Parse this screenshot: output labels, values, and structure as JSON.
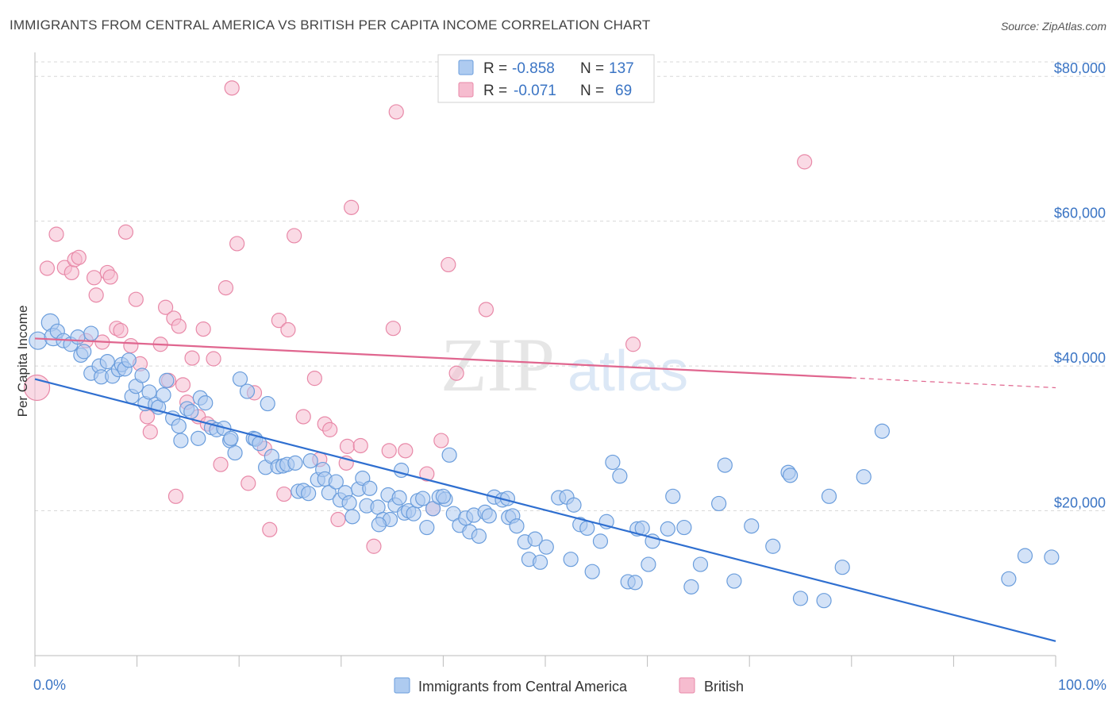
{
  "title": "IMMIGRANTS FROM CENTRAL AMERICA VS BRITISH PER CAPITA INCOME CORRELATION CHART",
  "source": "Source: ZipAtlas.com",
  "watermark": {
    "zip": "ZIP",
    "atlas": "atlas"
  },
  "colors": {
    "blue_fill": "#aecbf0",
    "blue_stroke": "#6a9ddc",
    "blue_line": "#2f6fd0",
    "pink_fill": "#f6bccf",
    "pink_stroke": "#e889a8",
    "pink_line": "#e0668f",
    "grid": "#d8d8d8",
    "label": "#3a74c4"
  },
  "legend": {
    "rows": [
      {
        "r_label": "R =",
        "r_value": "-0.858",
        "n_label": "N =",
        "n_value": "137",
        "series": "blue"
      },
      {
        "r_label": "R =",
        "r_value": "-0.071",
        "n_label": "N =",
        "n_value": "69",
        "series": "pink"
      }
    ]
  },
  "bottom_legend": [
    "Immigrants from Central America",
    "British"
  ],
  "chart_data": {
    "type": "scatter",
    "title": "IMMIGRANTS FROM CENTRAL AMERICA VS BRITISH PER CAPITA INCOME CORRELATION CHART",
    "ylabel": "Per Capita Income",
    "xlim": [
      0,
      100
    ],
    "ylim": [
      0,
      82000
    ],
    "x_tick_labels": [
      "0.0%",
      "100.0%"
    ],
    "y_ticks": [
      20000,
      40000,
      60000,
      80000
    ],
    "y_tick_labels": [
      "$20,000",
      "$40,000",
      "$60,000",
      "$80,000"
    ],
    "grid": true,
    "legend_position": "top-center",
    "series": [
      {
        "name": "Immigrants from Central America",
        "color": "blue",
        "trend": {
          "x": [
            0,
            100
          ],
          "y": [
            38200,
            2000
          ]
        },
        "points": [
          [
            0.3,
            43500
          ],
          [
            1.5,
            46000
          ],
          [
            1.8,
            44000
          ],
          [
            2.2,
            44800
          ],
          [
            2.8,
            43500
          ],
          [
            3.5,
            43000
          ],
          [
            4.2,
            44000
          ],
          [
            4.5,
            41500
          ],
          [
            4.8,
            42000
          ],
          [
            5.5,
            44500
          ],
          [
            5.5,
            39000
          ],
          [
            6.3,
            40000
          ],
          [
            6.5,
            38500
          ],
          [
            7.1,
            40600
          ],
          [
            7.6,
            38600
          ],
          [
            8.2,
            39500
          ],
          [
            8.5,
            40200
          ],
          [
            8.8,
            39600
          ],
          [
            9.2,
            40800
          ],
          [
            9.5,
            35800
          ],
          [
            9.9,
            37200
          ],
          [
            10.5,
            38700
          ],
          [
            10.8,
            34800
          ],
          [
            11.2,
            36400
          ],
          [
            11.8,
            34700
          ],
          [
            12.1,
            34300
          ],
          [
            12.6,
            36000
          ],
          [
            12.9,
            38000
          ],
          [
            13.5,
            32800
          ],
          [
            14.1,
            31700
          ],
          [
            14.3,
            29700
          ],
          [
            14.9,
            34100
          ],
          [
            15.3,
            33700
          ],
          [
            16.0,
            30000
          ],
          [
            16.2,
            35600
          ],
          [
            16.7,
            34900
          ],
          [
            17.3,
            31500
          ],
          [
            17.8,
            31200
          ],
          [
            18.5,
            31400
          ],
          [
            19.1,
            29700
          ],
          [
            19.2,
            30000
          ],
          [
            19.6,
            28000
          ],
          [
            20.1,
            38200
          ],
          [
            21.4,
            30000
          ],
          [
            21.6,
            29900
          ],
          [
            22.0,
            29300
          ],
          [
            22.6,
            26000
          ],
          [
            23.2,
            27500
          ],
          [
            23.8,
            26100
          ],
          [
            24.3,
            26200
          ],
          [
            24.7,
            26400
          ],
          [
            25.5,
            26600
          ],
          [
            25.8,
            22700
          ],
          [
            26.3,
            22800
          ],
          [
            26.8,
            22400
          ],
          [
            27.0,
            26900
          ],
          [
            27.7,
            24300
          ],
          [
            28.2,
            25700
          ],
          [
            28.4,
            24400
          ],
          [
            28.8,
            22500
          ],
          [
            29.5,
            24000
          ],
          [
            29.9,
            21500
          ],
          [
            30.4,
            22500
          ],
          [
            30.8,
            21100
          ],
          [
            31.1,
            19200
          ],
          [
            31.7,
            23000
          ],
          [
            32.1,
            24500
          ],
          [
            32.5,
            20700
          ],
          [
            32.8,
            23100
          ],
          [
            33.6,
            20500
          ],
          [
            34.1,
            18800
          ],
          [
            34.6,
            22200
          ],
          [
            34.8,
            18800
          ],
          [
            35.3,
            20800
          ],
          [
            35.7,
            21800
          ],
          [
            36.2,
            19700
          ],
          [
            36.6,
            20000
          ],
          [
            37.1,
            19600
          ],
          [
            37.5,
            21400
          ],
          [
            38.0,
            21700
          ],
          [
            38.4,
            17700
          ],
          [
            39.0,
            20300
          ],
          [
            39.6,
            21900
          ],
          [
            40.2,
            21600
          ],
          [
            40.6,
            27700
          ],
          [
            41.0,
            19600
          ],
          [
            41.6,
            18000
          ],
          [
            42.2,
            19000
          ],
          [
            42.6,
            17100
          ],
          [
            43.0,
            19400
          ],
          [
            43.5,
            16500
          ],
          [
            44.1,
            19800
          ],
          [
            44.5,
            19300
          ],
          [
            45.0,
            21900
          ],
          [
            45.8,
            21500
          ],
          [
            46.4,
            19100
          ],
          [
            46.8,
            19300
          ],
          [
            47.2,
            17900
          ],
          [
            48.0,
            15700
          ],
          [
            48.4,
            13300
          ],
          [
            49.0,
            16100
          ],
          [
            49.5,
            12900
          ],
          [
            50.1,
            15000
          ],
          [
            51.3,
            21800
          ],
          [
            52.1,
            21900
          ],
          [
            52.5,
            13300
          ],
          [
            52.8,
            20800
          ],
          [
            53.4,
            18100
          ],
          [
            54.1,
            17600
          ],
          [
            54.6,
            11600
          ],
          [
            55.4,
            15800
          ],
          [
            56.0,
            18500
          ],
          [
            56.6,
            26700
          ],
          [
            57.3,
            24800
          ],
          [
            58.1,
            10200
          ],
          [
            59.0,
            17500
          ],
          [
            59.5,
            17600
          ],
          [
            60.1,
            12600
          ],
          [
            62.0,
            17500
          ],
          [
            62.5,
            22000
          ],
          [
            63.6,
            17700
          ],
          [
            64.3,
            9500
          ],
          [
            65.2,
            12600
          ],
          [
            67.0,
            21000
          ],
          [
            67.6,
            26300
          ],
          [
            68.5,
            10300
          ],
          [
            70.2,
            17900
          ],
          [
            72.3,
            15100
          ],
          [
            73.8,
            25300
          ],
          [
            74.0,
            24900
          ],
          [
            75.0,
            7900
          ],
          [
            77.3,
            7600
          ],
          [
            77.8,
            22000
          ],
          [
            79.1,
            12200
          ],
          [
            81.2,
            24700
          ],
          [
            83.0,
            31000
          ],
          [
            95.4,
            10600
          ],
          [
            97.0,
            13800
          ],
          [
            99.6,
            13600
          ],
          [
            60.5,
            15800
          ],
          [
            35.9,
            25600
          ],
          [
            33.7,
            18100
          ],
          [
            46.3,
            21700
          ],
          [
            20.8,
            36500
          ],
          [
            22.8,
            34800
          ],
          [
            40.0,
            22000
          ],
          [
            58.8,
            10100
          ]
        ]
      },
      {
        "name": "British",
        "color": "pink",
        "trend": {
          "x": [
            0,
            100
          ],
          "y": [
            43800,
            37000
          ]
        },
        "points": [
          [
            0.2,
            37000
          ],
          [
            1.2,
            53500
          ],
          [
            2.1,
            58200
          ],
          [
            2.9,
            53600
          ],
          [
            3.6,
            52900
          ],
          [
            3.9,
            54700
          ],
          [
            4.3,
            55000
          ],
          [
            5.0,
            43500
          ],
          [
            5.8,
            52200
          ],
          [
            6.0,
            49800
          ],
          [
            6.6,
            43300
          ],
          [
            7.1,
            52900
          ],
          [
            7.4,
            52300
          ],
          [
            8.0,
            45200
          ],
          [
            8.4,
            44900
          ],
          [
            8.9,
            58500
          ],
          [
            9.4,
            42800
          ],
          [
            9.9,
            49200
          ],
          [
            10.3,
            40300
          ],
          [
            11.0,
            33000
          ],
          [
            11.3,
            30900
          ],
          [
            12.3,
            43000
          ],
          [
            12.8,
            48100
          ],
          [
            13.1,
            38000
          ],
          [
            13.6,
            46600
          ],
          [
            14.1,
            45500
          ],
          [
            14.5,
            37400
          ],
          [
            14.9,
            35000
          ],
          [
            15.4,
            41100
          ],
          [
            16.0,
            33000
          ],
          [
            16.5,
            45100
          ],
          [
            16.9,
            32000
          ],
          [
            17.5,
            41000
          ],
          [
            18.2,
            26400
          ],
          [
            18.7,
            50800
          ],
          [
            19.3,
            78400
          ],
          [
            19.8,
            56900
          ],
          [
            20.9,
            23800
          ],
          [
            21.5,
            36300
          ],
          [
            22.5,
            28600
          ],
          [
            23.0,
            17400
          ],
          [
            23.9,
            46300
          ],
          [
            24.4,
            22300
          ],
          [
            24.8,
            45000
          ],
          [
            25.4,
            58000
          ],
          [
            26.3,
            33000
          ],
          [
            27.4,
            38300
          ],
          [
            27.9,
            27100
          ],
          [
            28.4,
            32000
          ],
          [
            28.9,
            31200
          ],
          [
            29.7,
            18800
          ],
          [
            30.6,
            28900
          ],
          [
            31.0,
            61900
          ],
          [
            31.9,
            29000
          ],
          [
            33.2,
            15100
          ],
          [
            34.7,
            28300
          ],
          [
            35.1,
            45200
          ],
          [
            35.4,
            75100
          ],
          [
            36.3,
            28300
          ],
          [
            38.4,
            25100
          ],
          [
            39.0,
            20300
          ],
          [
            39.8,
            29700
          ],
          [
            40.5,
            54000
          ],
          [
            41.3,
            39000
          ],
          [
            44.2,
            47800
          ],
          [
            58.6,
            43000
          ],
          [
            75.4,
            68200
          ],
          [
            30.5,
            26600
          ],
          [
            13.8,
            22000
          ]
        ]
      }
    ]
  }
}
